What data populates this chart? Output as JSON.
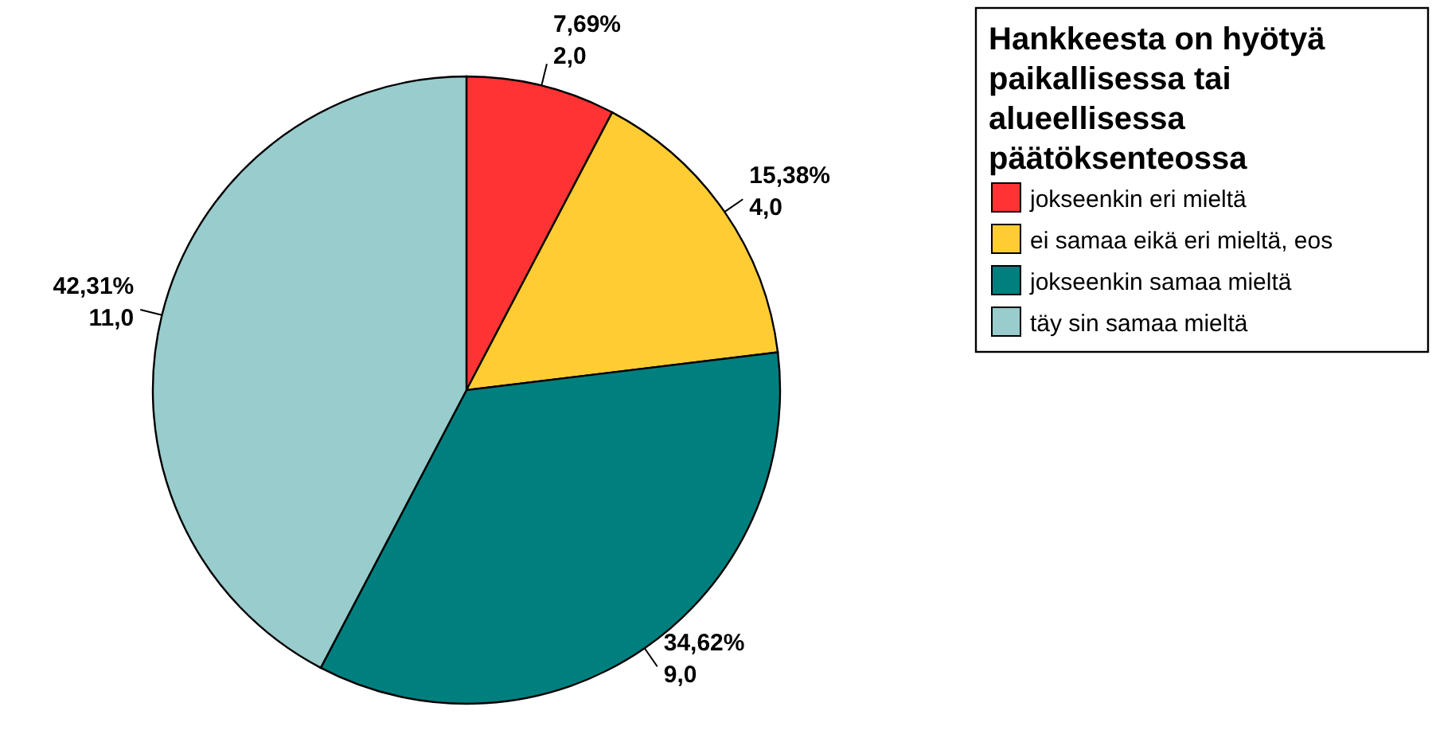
{
  "chart_data": {
    "type": "pie",
    "legend_title": "Hankkeesta on hyötyä paikallisessa tai alueellisessa päätöksenteossa",
    "legend": "right",
    "categories": [
      "jokseenkin eri mieltä",
      "ei samaa eikä eri mieltä, eos",
      "jokseenkin samaa mieltä",
      "täy sin samaa mieltä"
    ],
    "values": [
      2,
      4,
      9,
      11
    ],
    "value_labels": [
      "7,69%\n2,0",
      "15,38%\n4,0",
      "34,62%\n9,0",
      "42,31%\n11,0"
    ],
    "colors": [
      "#ff3333",
      "#ffcc33",
      "#007f7f",
      "#99cccc"
    ]
  }
}
